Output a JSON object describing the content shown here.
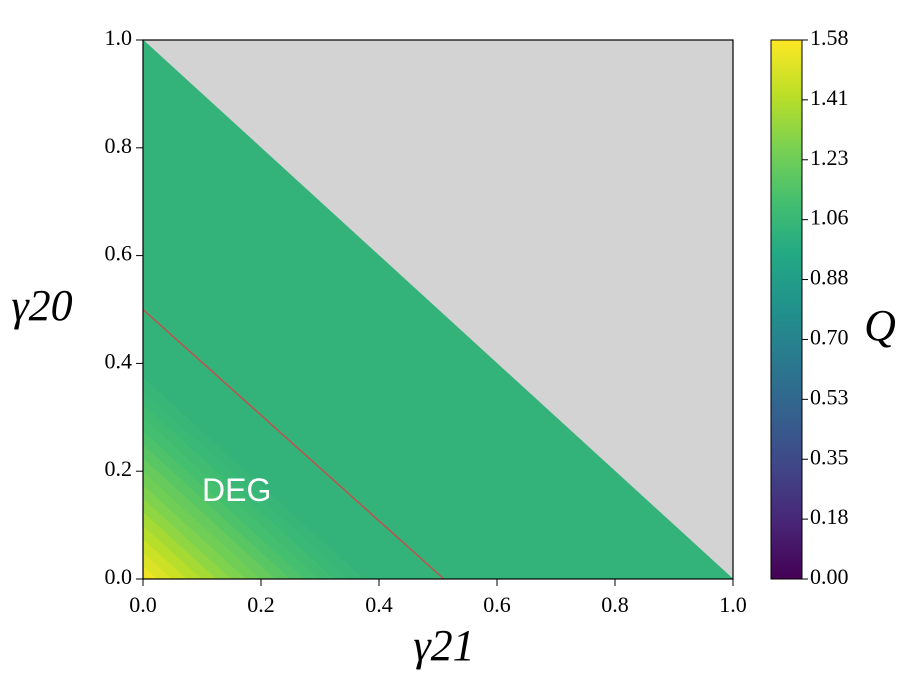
{
  "chart_data": {
    "type": "diagonal-heatmap",
    "x_label": "γ21",
    "y_label": "γ20",
    "colorbar_label": "Q",
    "colormap": "viridis",
    "mask_color": "#d3d3d3",
    "xlim": [
      0,
      1
    ],
    "ylim": [
      0,
      1
    ],
    "xticks": [
      {
        "value": 0,
        "label": "0.0"
      },
      {
        "value": 0.2,
        "label": "0.2"
      },
      {
        "value": 0.4,
        "label": "0.4"
      },
      {
        "value": 0.6,
        "label": "0.6"
      },
      {
        "value": 0.8,
        "label": "0.8"
      },
      {
        "value": 1,
        "label": "1.0"
      }
    ],
    "yticks": [
      {
        "value": 0,
        "label": "0.0"
      },
      {
        "value": 0.2,
        "label": "0.2"
      },
      {
        "value": 0.4,
        "label": "0.4"
      },
      {
        "value": 0.6,
        "label": "0.6"
      },
      {
        "value": 0.8,
        "label": "0.8"
      },
      {
        "value": 1,
        "label": "1.0"
      }
    ],
    "clim": [
      0,
      1.585
    ],
    "cticks": [
      {
        "value": 0,
        "label": "0.00"
      },
      {
        "value": 0.1761,
        "label": "0.18"
      },
      {
        "value": 0.3522,
        "label": "0.35"
      },
      {
        "value": 0.5283,
        "label": "0.53"
      },
      {
        "value": 0.7044,
        "label": "0.70"
      },
      {
        "value": 0.8806,
        "label": "0.88"
      },
      {
        "value": 1.0567,
        "label": "1.06"
      },
      {
        "value": 1.2328,
        "label": "1.23"
      },
      {
        "value": 1.409,
        "label": "1.41"
      },
      {
        "value": 1.585,
        "label": "1.58"
      }
    ],
    "s_edges": [
      0,
      0.025,
      0.05,
      0.075,
      0.1,
      0.125,
      0.15,
      0.175,
      0.2,
      0.225,
      0.25,
      0.275,
      0.3,
      0.325,
      0.35,
      0.375,
      0.4,
      1.0
    ],
    "values": [
      1.55,
      1.5,
      1.46,
      1.41,
      1.37,
      1.32,
      1.28,
      1.24,
      1.21,
      1.17,
      1.14,
      1.11,
      1.09,
      1.06,
      1.05,
      1.03,
      1.03
    ],
    "line": {
      "x": [
        0,
        0.51
      ],
      "y": [
        0.5,
        0
      ],
      "color": "#c0504d"
    },
    "annotation": {
      "text": "DEG",
      "x": 0.1,
      "y": 0.16
    }
  }
}
